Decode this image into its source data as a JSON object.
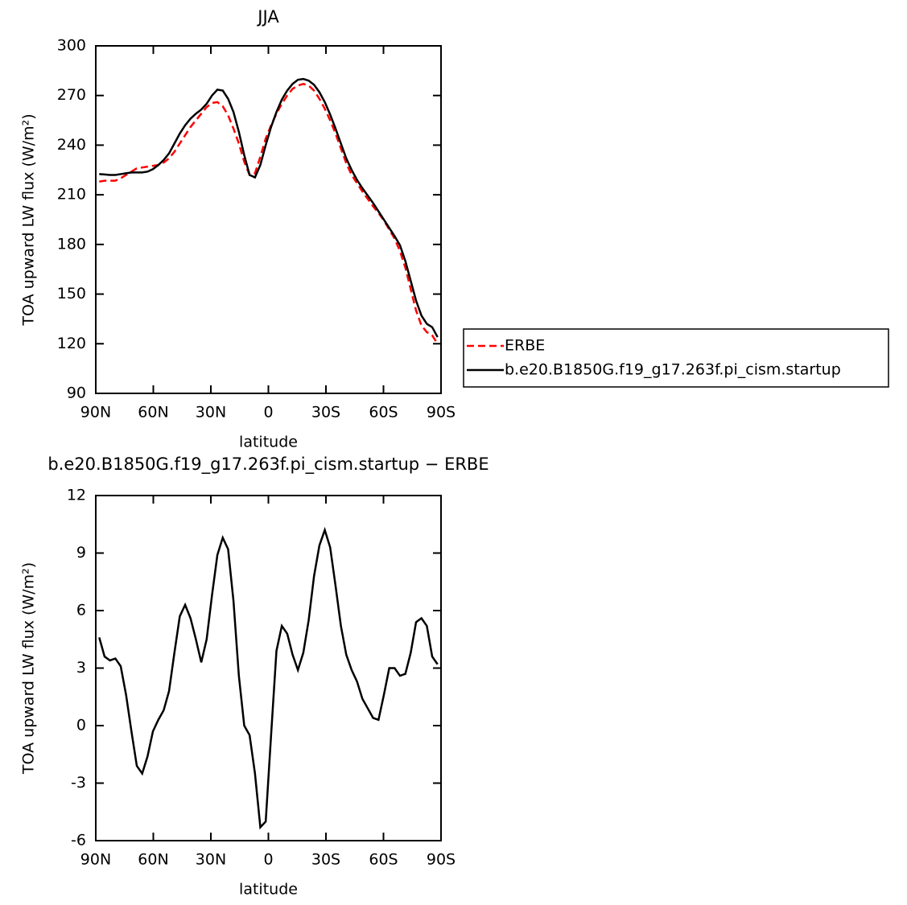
{
  "chart_data": [
    {
      "type": "line",
      "title": "JJA",
      "xlabel": "latitude",
      "ylabel": "TOA upward LW flux (W/m²)",
      "x": [
        88.2,
        85.4,
        82.6,
        79.8,
        77.0,
        74.2,
        71.4,
        68.6,
        65.8,
        63.0,
        60.2,
        57.4,
        54.6,
        51.8,
        49.0,
        46.2,
        43.4,
        40.6,
        37.8,
        35.0,
        32.2,
        29.4,
        26.6,
        23.8,
        21.0,
        18.2,
        15.4,
        12.6,
        9.8,
        7.0,
        4.2,
        1.4,
        -1.4,
        -4.2,
        -7.0,
        -9.8,
        -12.6,
        -15.4,
        -18.2,
        -21.0,
        -23.8,
        -26.6,
        -29.4,
        -32.2,
        -35.0,
        -37.8,
        -40.6,
        -43.4,
        -46.2,
        -49.0,
        -51.8,
        -54.6,
        -57.4,
        -60.2,
        -63.0,
        -65.8,
        -68.6,
        -71.4,
        -74.2,
        -77.0,
        -79.8,
        -82.6,
        -85.4,
        -88.2
      ],
      "series": [
        {
          "name": "ERBE",
          "color": "#ff0000",
          "linestyle": "dashed",
          "values": [
            218,
            218.5,
            218.5,
            218.5,
            220,
            222,
            224,
            226,
            226.5,
            227,
            227.5,
            228,
            229.5,
            232,
            236,
            241,
            246,
            251,
            255,
            259,
            263,
            265.5,
            266,
            263.5,
            258,
            250,
            241,
            230,
            222,
            223,
            233,
            244,
            252,
            259,
            265,
            270,
            274,
            276,
            277,
            276,
            273,
            268,
            262,
            255,
            247,
            238,
            229,
            222,
            217,
            212,
            207.5,
            203,
            199,
            194.5,
            189,
            183.5,
            176,
            166,
            153,
            140,
            131,
            127,
            125,
            120
          ]
        },
        {
          "name": "b.e20.B1850G.f19_g17.263f.pi_cism.startup",
          "color": "#000000",
          "linestyle": "solid",
          "values": [
            222.5,
            222.3,
            222,
            222,
            222.5,
            223,
            223.5,
            223.5,
            223.5,
            224,
            225.5,
            228,
            231,
            235,
            241,
            247,
            252,
            256,
            259,
            261.5,
            265,
            270,
            273.5,
            273,
            268,
            260,
            248,
            234,
            222,
            220.5,
            228,
            240,
            251,
            260,
            267.5,
            273,
            277,
            279.5,
            280,
            279,
            276.5,
            272,
            266,
            258.5,
            250,
            241,
            232,
            225,
            219,
            214,
            209.5,
            205,
            200,
            195,
            190,
            185,
            179.5,
            170,
            158,
            146,
            137,
            132,
            130,
            124
          ]
        }
      ],
      "xlim": [
        90,
        -90
      ],
      "xticks": [
        {
          "value": 90,
          "label": "90N"
        },
        {
          "value": 60,
          "label": "60N"
        },
        {
          "value": 30,
          "label": "30N"
        },
        0,
        {
          "value": -30,
          "label": "30S"
        },
        {
          "value": -60,
          "label": "60S"
        },
        {
          "value": -90,
          "label": "90S"
        }
      ],
      "ylim": [
        90,
        300
      ],
      "yticks": [
        90,
        120,
        150,
        180,
        210,
        240,
        270,
        300
      ],
      "legend": "right"
    },
    {
      "type": "line",
      "title": "b.e20.B1850G.f19_g17.263f.pi_cism.startup − ERBE",
      "xlabel": "latitude",
      "ylabel": "TOA upward LW flux (W/m²)",
      "x": [
        88.2,
        85.4,
        82.6,
        79.8,
        77.0,
        74.2,
        71.4,
        68.6,
        65.8,
        63.0,
        60.2,
        57.4,
        54.6,
        51.8,
        49.0,
        46.2,
        43.4,
        40.6,
        37.8,
        35.0,
        32.2,
        29.4,
        26.6,
        23.8,
        21.0,
        18.2,
        15.4,
        12.6,
        9.8,
        7.0,
        4.2,
        1.4,
        -1.4,
        -4.2,
        -7.0,
        -9.8,
        -12.6,
        -15.4,
        -18.2,
        -21.0,
        -23.8,
        -26.6,
        -29.4,
        -32.2,
        -35.0,
        -37.8,
        -40.6,
        -43.4,
        -46.2,
        -49.0,
        -51.8,
        -54.6,
        -57.4,
        -60.2,
        -63.0,
        -65.8,
        -68.6,
        -71.4,
        -74.2,
        -77.0,
        -79.8,
        -82.6,
        -85.4,
        -88.2
      ],
      "series": [
        {
          "color": "#000000",
          "linestyle": "solid",
          "values": [
            4.6,
            3.6,
            3.4,
            3.5,
            3.1,
            1.6,
            -0.3,
            -2.1,
            -2.5,
            -1.6,
            -0.3,
            0.3,
            0.8,
            1.8,
            3.8,
            5.7,
            6.3,
            5.6,
            4.5,
            3.3,
            4.5,
            6.8,
            8.9,
            9.8,
            9.2,
            6.5,
            2.6,
            0,
            -0.5,
            -2.5,
            -5.3,
            -5.0,
            -0.5,
            3.9,
            5.2,
            4.8,
            3.7,
            2.9,
            3.8,
            5.5,
            7.8,
            9.4,
            10.2,
            9.3,
            7.3,
            5.2,
            3.7,
            2.9,
            2.3,
            1.4,
            0.9,
            0.4,
            0.3,
            1.6,
            3.0,
            3.0,
            2.6,
            2.7,
            3.8,
            5.4,
            5.6,
            5.2,
            3.6,
            3.2
          ]
        }
      ],
      "xlim": [
        90,
        -90
      ],
      "xticks": [
        {
          "value": 90,
          "label": "90N"
        },
        {
          "value": 60,
          "label": "60N"
        },
        {
          "value": 30,
          "label": "30N"
        },
        0,
        {
          "value": -30,
          "label": "30S"
        },
        {
          "value": -60,
          "label": "60S"
        },
        {
          "value": -90,
          "label": "90S"
        }
      ],
      "ylim": [
        -6,
        12
      ],
      "yticks": [
        -6,
        -3,
        0,
        3,
        6,
        9,
        12
      ]
    }
  ]
}
